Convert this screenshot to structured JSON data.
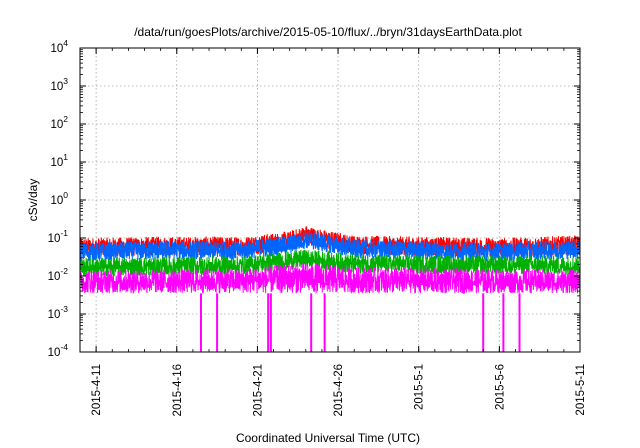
{
  "chart_data": {
    "type": "line",
    "title": "/data/run/goesPlots/archive/2015-05-10/flux/../bryn/31daysEarthData.plot",
    "xlabel": "Coordinated Universal Time (UTC)",
    "ylabel": "cSv/day",
    "x_range": [
      "2015-04-10",
      "2015-05-11"
    ],
    "x_ticks": [
      "2015-4-11",
      "2015-4-16",
      "2015-4-21",
      "2015-4-26",
      "2015-5-1",
      "2015-5-6",
      "2015-5-11"
    ],
    "y_scale": "log",
    "ylim": [
      0.0001,
      10000
    ],
    "y_ticks": [
      {
        "base": "10",
        "exp": "-4"
      },
      {
        "base": "10",
        "exp": "-3"
      },
      {
        "base": "10",
        "exp": "-2"
      },
      {
        "base": "10",
        "exp": "-1"
      },
      {
        "base": "10",
        "exp": "0"
      },
      {
        "base": "10",
        "exp": "1"
      },
      {
        "base": "10",
        "exp": "2"
      },
      {
        "base": "10",
        "exp": "3"
      },
      {
        "base": "10",
        "exp": "4"
      }
    ],
    "grid": true,
    "series": [
      {
        "color": "#ff0000",
        "level_pts": [
          [
            "2015-04-10",
            0.06
          ],
          [
            "2015-04-15",
            0.065
          ],
          [
            "2015-04-20",
            0.065
          ],
          [
            "2015-04-23",
            0.09
          ],
          [
            "2015-04-24",
            0.13
          ],
          [
            "2015-04-25",
            0.1
          ],
          [
            "2015-04-27",
            0.07
          ],
          [
            "2015-05-01",
            0.065
          ],
          [
            "2015-05-06",
            0.06
          ],
          [
            "2015-05-11",
            0.07
          ]
        ]
      },
      {
        "color": "#0066ff",
        "level_pts": [
          [
            "2015-04-10",
            0.045
          ],
          [
            "2015-04-15",
            0.05
          ],
          [
            "2015-04-20",
            0.05
          ],
          [
            "2015-04-23",
            0.07
          ],
          [
            "2015-04-24",
            0.1
          ],
          [
            "2015-04-25",
            0.08
          ],
          [
            "2015-04-27",
            0.055
          ],
          [
            "2015-05-01",
            0.05
          ],
          [
            "2015-05-06",
            0.045
          ],
          [
            "2015-05-11",
            0.055
          ]
        ]
      },
      {
        "color": "#00b000",
        "level_pts": [
          [
            "2015-04-10",
            0.018
          ],
          [
            "2015-04-20",
            0.02
          ],
          [
            "2015-04-24",
            0.03
          ],
          [
            "2015-04-27",
            0.022
          ],
          [
            "2015-05-11",
            0.02
          ]
        ]
      },
      {
        "color": "#ff00ff",
        "level_pts": [
          [
            "2015-04-10",
            0.012
          ],
          [
            "2015-04-20",
            0.013
          ],
          [
            "2015-04-24",
            0.018
          ],
          [
            "2015-04-27",
            0.014
          ],
          [
            "2015-05-11",
            0.012
          ]
        ],
        "floor": 0.0035,
        "dropouts": [
          "2015-04-17T12:00",
          "2015-04-18T12:00",
          "2015-04-21T16:00",
          "2015-04-21T20:00",
          "2015-04-24T08:00",
          "2015-04-25T04:00",
          "2015-05-05T00:00",
          "2015-05-06T06:00",
          "2015-05-07T06:00"
        ]
      }
    ]
  }
}
